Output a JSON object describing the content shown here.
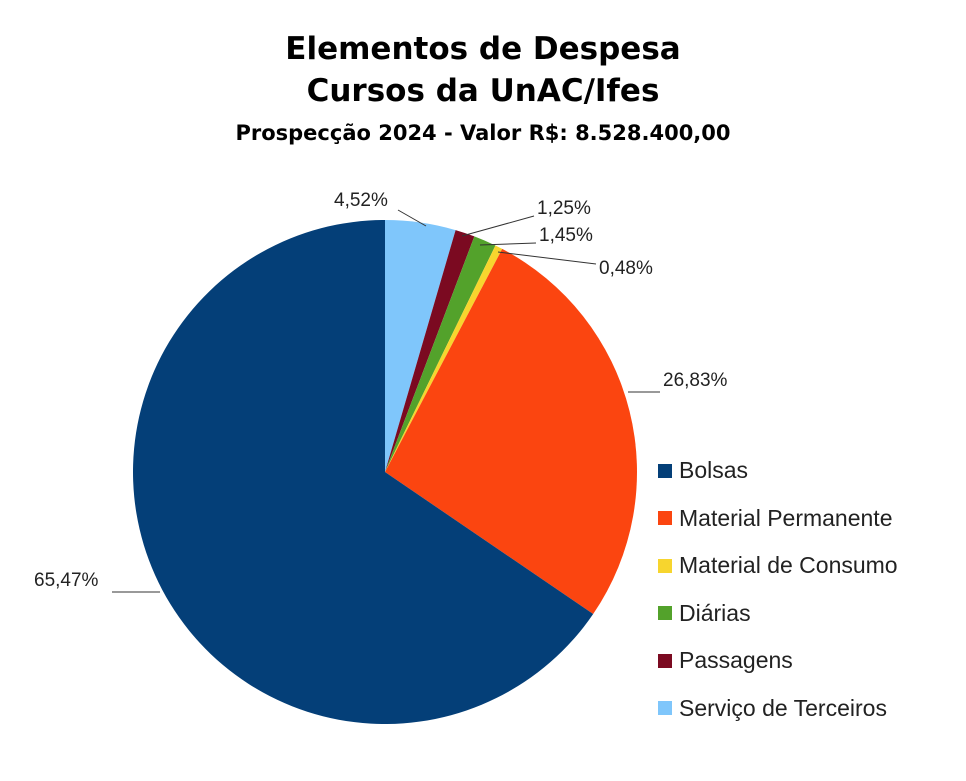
{
  "chart_data": {
    "type": "pie",
    "title_lines": [
      "Elementos de Despesa",
      "Cursos da UnAC/Ifes"
    ],
    "subtitle": "Prospecção 2024 - Valor R$: 8.528.400,00",
    "slices": [
      {
        "name": "Serviço de Terceiros",
        "value": 4.52,
        "label": "4,52%",
        "color": "#7fc6fb"
      },
      {
        "name": "Passagens",
        "value": 1.25,
        "label": "1,25%",
        "color": "#7b0a21"
      },
      {
        "name": "Diárias",
        "value": 1.45,
        "label": "1,45%",
        "color": "#53a22b"
      },
      {
        "name": "Material de Consumo",
        "value": 0.48,
        "label": "0,48%",
        "color": "#f7d52e"
      },
      {
        "name": "Material Permanente",
        "value": 26.83,
        "label": "26,83%",
        "color": "#fb4510"
      },
      {
        "name": "Bolsas",
        "value": 65.47,
        "label": "65,47%",
        "color": "#043f78"
      }
    ],
    "legend": [
      "Bolsas",
      "Material Permanente",
      "Material de Consumo",
      "Diárias",
      "Passagens",
      "Serviço de Terceiros"
    ],
    "legend_position": "right",
    "start_angle": "top",
    "direction": "clockwise"
  }
}
